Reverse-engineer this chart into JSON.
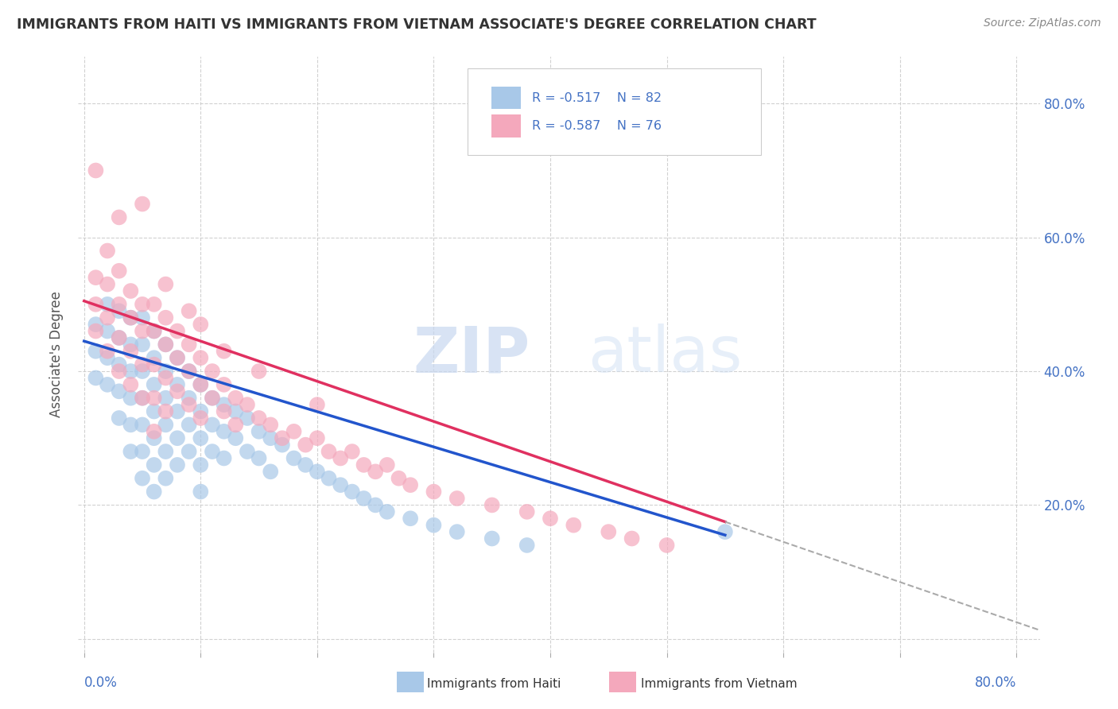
{
  "title": "IMMIGRANTS FROM HAITI VS IMMIGRANTS FROM VIETNAM ASSOCIATE'S DEGREE CORRELATION CHART",
  "source_text": "Source: ZipAtlas.com",
  "ylabel": "Associate's Degree",
  "ytick_values": [
    0.0,
    0.2,
    0.4,
    0.6,
    0.8
  ],
  "xtick_values": [
    0.0,
    0.1,
    0.2,
    0.3,
    0.4,
    0.5,
    0.6,
    0.7,
    0.8
  ],
  "xlim": [
    -0.005,
    0.82
  ],
  "ylim": [
    -0.02,
    0.87
  ],
  "haiti_color": "#A8C8E8",
  "vietnam_color": "#F4A8BC",
  "haiti_line_color": "#2255CC",
  "vietnam_line_color": "#E03060",
  "haiti_R": -0.517,
  "haiti_N": 82,
  "vietnam_R": -0.587,
  "vietnam_N": 76,
  "watermark_zip": "ZIP",
  "watermark_atlas": "atlas",
  "background_color": "#ffffff",
  "grid_color": "#CCCCCC",
  "tick_color": "#4472C4",
  "title_color": "#333333",
  "haiti_scatter_x": [
    0.01,
    0.01,
    0.01,
    0.02,
    0.02,
    0.02,
    0.02,
    0.03,
    0.03,
    0.03,
    0.03,
    0.03,
    0.04,
    0.04,
    0.04,
    0.04,
    0.04,
    0.04,
    0.05,
    0.05,
    0.05,
    0.05,
    0.05,
    0.05,
    0.05,
    0.06,
    0.06,
    0.06,
    0.06,
    0.06,
    0.06,
    0.06,
    0.07,
    0.07,
    0.07,
    0.07,
    0.07,
    0.07,
    0.08,
    0.08,
    0.08,
    0.08,
    0.08,
    0.09,
    0.09,
    0.09,
    0.09,
    0.1,
    0.1,
    0.1,
    0.1,
    0.1,
    0.11,
    0.11,
    0.11,
    0.12,
    0.12,
    0.12,
    0.13,
    0.13,
    0.14,
    0.14,
    0.15,
    0.15,
    0.16,
    0.16,
    0.17,
    0.18,
    0.19,
    0.2,
    0.21,
    0.22,
    0.23,
    0.24,
    0.25,
    0.26,
    0.28,
    0.3,
    0.32,
    0.35,
    0.38,
    0.55
  ],
  "haiti_scatter_y": [
    0.47,
    0.43,
    0.39,
    0.5,
    0.46,
    0.42,
    0.38,
    0.49,
    0.45,
    0.41,
    0.37,
    0.33,
    0.48,
    0.44,
    0.4,
    0.36,
    0.32,
    0.28,
    0.48,
    0.44,
    0.4,
    0.36,
    0.32,
    0.28,
    0.24,
    0.46,
    0.42,
    0.38,
    0.34,
    0.3,
    0.26,
    0.22,
    0.44,
    0.4,
    0.36,
    0.32,
    0.28,
    0.24,
    0.42,
    0.38,
    0.34,
    0.3,
    0.26,
    0.4,
    0.36,
    0.32,
    0.28,
    0.38,
    0.34,
    0.3,
    0.26,
    0.22,
    0.36,
    0.32,
    0.28,
    0.35,
    0.31,
    0.27,
    0.34,
    0.3,
    0.33,
    0.28,
    0.31,
    0.27,
    0.3,
    0.25,
    0.29,
    0.27,
    0.26,
    0.25,
    0.24,
    0.23,
    0.22,
    0.21,
    0.2,
    0.19,
    0.18,
    0.17,
    0.16,
    0.15,
    0.14,
    0.16
  ],
  "vietnam_scatter_x": [
    0.01,
    0.01,
    0.01,
    0.01,
    0.02,
    0.02,
    0.02,
    0.02,
    0.03,
    0.03,
    0.03,
    0.03,
    0.03,
    0.04,
    0.04,
    0.04,
    0.04,
    0.05,
    0.05,
    0.05,
    0.05,
    0.05,
    0.06,
    0.06,
    0.06,
    0.06,
    0.06,
    0.07,
    0.07,
    0.07,
    0.07,
    0.08,
    0.08,
    0.08,
    0.09,
    0.09,
    0.09,
    0.1,
    0.1,
    0.1,
    0.11,
    0.11,
    0.12,
    0.12,
    0.13,
    0.13,
    0.14,
    0.15,
    0.16,
    0.17,
    0.18,
    0.19,
    0.2,
    0.21,
    0.22,
    0.23,
    0.24,
    0.25,
    0.26,
    0.27,
    0.28,
    0.3,
    0.32,
    0.35,
    0.38,
    0.4,
    0.42,
    0.45,
    0.47,
    0.5,
    0.07,
    0.09,
    0.1,
    0.12,
    0.15,
    0.2
  ],
  "vietnam_scatter_y": [
    0.54,
    0.5,
    0.46,
    0.7,
    0.58,
    0.53,
    0.48,
    0.43,
    0.55,
    0.5,
    0.45,
    0.4,
    0.63,
    0.52,
    0.48,
    0.43,
    0.38,
    0.5,
    0.46,
    0.41,
    0.36,
    0.65,
    0.5,
    0.46,
    0.41,
    0.36,
    0.31,
    0.48,
    0.44,
    0.39,
    0.34,
    0.46,
    0.42,
    0.37,
    0.44,
    0.4,
    0.35,
    0.42,
    0.38,
    0.33,
    0.4,
    0.36,
    0.38,
    0.34,
    0.36,
    0.32,
    0.35,
    0.33,
    0.32,
    0.3,
    0.31,
    0.29,
    0.3,
    0.28,
    0.27,
    0.28,
    0.26,
    0.25,
    0.26,
    0.24,
    0.23,
    0.22,
    0.21,
    0.2,
    0.19,
    0.18,
    0.17,
    0.16,
    0.15,
    0.14,
    0.53,
    0.49,
    0.47,
    0.43,
    0.4,
    0.35
  ]
}
